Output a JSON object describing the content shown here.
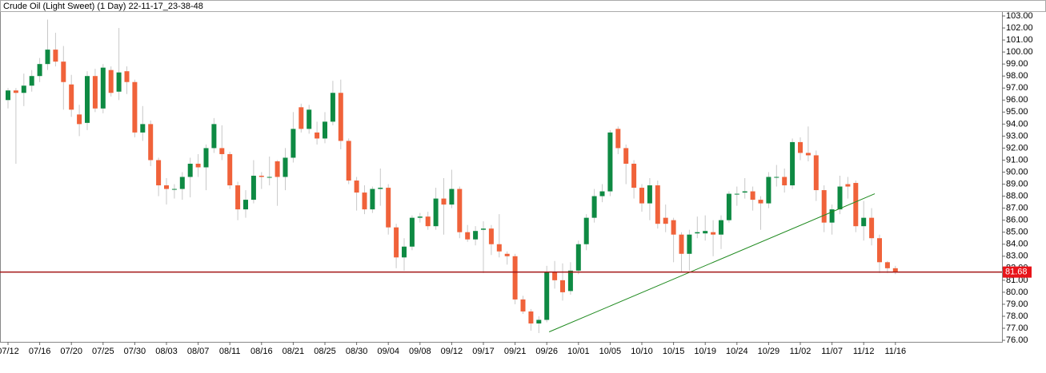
{
  "chart_data": {
    "type": "candlestick",
    "title": "Crude Oil (Light Sweet) (1 Day) 22-11-17_23-38-48",
    "categories": [
      "07/12",
      null,
      null,
      null,
      "07/16",
      null,
      null,
      null,
      "07/20",
      null,
      null,
      null,
      "07/25",
      null,
      null,
      null,
      "07/30",
      null,
      null,
      null,
      "08/03",
      null,
      null,
      null,
      "08/07",
      null,
      null,
      null,
      "08/11",
      null,
      null,
      null,
      "08/16",
      null,
      null,
      null,
      "08/21",
      null,
      null,
      null,
      "08/25",
      null,
      null,
      null,
      "08/30",
      null,
      null,
      null,
      "09/04",
      null,
      null,
      null,
      "09/08",
      null,
      null,
      null,
      "09/12",
      null,
      null,
      null,
      "09/17",
      null,
      null,
      null,
      "09/21",
      null,
      null,
      null,
      "09/26",
      null,
      null,
      null,
      "10/01",
      null,
      null,
      null,
      "10/05",
      null,
      null,
      null,
      "10/10",
      null,
      null,
      null,
      "10/15",
      null,
      null,
      null,
      "10/19",
      null,
      null,
      null,
      "10/24",
      null,
      null,
      null,
      "10/29",
      null,
      null,
      null,
      "11/02",
      null,
      null,
      null,
      "11/07",
      null,
      null,
      null,
      "11/12",
      null,
      null,
      null,
      "11/16"
    ],
    "open": [
      96.0,
      96.8,
      96.6,
      97.2,
      98.0,
      99.0,
      100.2,
      99.2,
      97.3,
      94.8,
      94.1,
      98.0,
      95.3,
      98.5,
      96.7,
      98.4,
      97.5,
      93.3,
      94.0,
      91.0,
      88.9,
      88.6,
      88.6,
      89.6,
      90.7,
      90.4,
      92.0,
      92.0,
      91.5,
      88.9,
      86.9,
      87.7,
      89.7,
      89.6,
      90.9,
      89.6,
      91.2,
      95.4,
      93.6,
      93.3,
      92.8,
      94.2,
      96.6,
      92.6,
      89.3,
      88.3,
      86.9,
      88.6,
      88.7,
      85.4,
      82.9,
      83.8,
      86.2,
      86.3,
      85.5,
      87.8,
      87.3,
      88.6,
      85.0,
      84.4,
      85.2,
      85.3,
      84.0,
      83.2,
      83.0,
      79.4,
      78.4,
      77.4,
      77.7,
      81.7,
      81.0,
      80.1,
      81.8,
      84.0,
      86.2,
      88.0,
      88.4,
      93.6,
      92.0,
      90.7,
      88.7,
      87.4,
      88.9,
      86.2,
      86.0,
      84.8,
      83.2,
      84.9,
      84.9,
      85.0,
      84.8,
      86.0,
      88.2,
      88.3,
      88.4,
      87.7,
      87.4,
      89.6,
      89.6,
      88.9,
      92.5,
      91.6,
      91.4,
      88.5,
      85.8,
      86.9,
      89.0,
      89.1,
      85.5,
      86.2,
      84.5,
      82.5,
      82.0
    ],
    "high": [
      97.0,
      97.0,
      98.2,
      98.5,
      99.5,
      102.7,
      101.6,
      100.5,
      98.1,
      95.6,
      98.4,
      98.6,
      99.0,
      98.8,
      102.0,
      98.8,
      97.7,
      95.5,
      94.3,
      91.2,
      89.5,
      89.0,
      90.0,
      91.2,
      91.5,
      92.3,
      94.5,
      93.9,
      91.7,
      89.2,
      88.5,
      91.0,
      90.0,
      91.3,
      91.0,
      92.0,
      95.0,
      95.7,
      95.6,
      94.2,
      95.0,
      97.6,
      97.7,
      92.8,
      89.6,
      88.9,
      88.8,
      90.3,
      89.0,
      85.7,
      84.5,
      86.4,
      86.6,
      86.7,
      88.7,
      89.5,
      90.2,
      88.8,
      85.6,
      85.5,
      85.9,
      85.6,
      86.5,
      83.4,
      83.2,
      79.7,
      78.6,
      78.0,
      82.2,
      82.6,
      82.4,
      82.5,
      84.3,
      86.5,
      88.6,
      89.0,
      93.5,
      93.8,
      92.3,
      91.0,
      89.0,
      89.5,
      89.3,
      87.3,
      86.2,
      85.0,
      85.2,
      86.3,
      86.4,
      86.0,
      86.4,
      88.4,
      88.8,
      89.5,
      88.8,
      88.0,
      90.0,
      90.6,
      90.3,
      92.8,
      92.9,
      93.8,
      91.8,
      88.9,
      87.3,
      89.7,
      89.6,
      89.3,
      87.6,
      87.0,
      84.8,
      82.6,
      82.2
    ],
    "low": [
      95.3,
      90.7,
      95.5,
      96.7,
      97.5,
      98.5,
      98.8,
      95.2,
      94.6,
      93.0,
      93.5,
      95.0,
      94.9,
      96.3,
      96.0,
      96.5,
      92.9,
      92.6,
      90.5,
      88.0,
      87.3,
      87.8,
      87.7,
      87.9,
      89.6,
      88.5,
      91.6,
      91.0,
      88.6,
      86.0,
      86.2,
      87.4,
      88.6,
      88.9,
      87.2,
      88.5,
      90.8,
      93.3,
      93.2,
      92.3,
      92.4,
      93.9,
      91.9,
      89.0,
      86.8,
      86.5,
      86.6,
      87.2,
      84.8,
      82.0,
      81.8,
      83.5,
      85.8,
      85.2,
      85.2,
      84.8,
      87.0,
      84.5,
      84.2,
      83.9,
      81.6,
      83.1,
      82.9,
      82.3,
      79.0,
      78.2,
      76.8,
      76.6,
      77.5,
      80.3,
      79.3,
      79.8,
      81.5,
      83.5,
      85.8,
      87.5,
      88.0,
      91.5,
      89.0,
      87.8,
      86.7,
      86.0,
      85.3,
      85.0,
      82.5,
      81.7,
      81.8,
      84.5,
      84.3,
      83.0,
      83.6,
      85.8,
      87.2,
      87.8,
      86.8,
      85.2,
      87.0,
      88.8,
      88.3,
      88.6,
      91.0,
      90.9,
      87.6,
      85.0,
      84.8,
      86.5,
      87.8,
      85.0,
      84.3,
      83.9,
      81.6,
      81.6,
      81.5
    ],
    "close": [
      96.8,
      96.6,
      97.2,
      98.0,
      99.0,
      100.2,
      99.2,
      97.5,
      95.2,
      94.0,
      98.0,
      95.3,
      98.7,
      96.6,
      98.3,
      97.5,
      93.3,
      94.0,
      91.0,
      88.9,
      88.6,
      88.6,
      89.6,
      90.7,
      90.4,
      92.0,
      94.0,
      91.5,
      88.9,
      86.9,
      87.7,
      89.7,
      89.6,
      89.6,
      89.6,
      91.2,
      93.6,
      93.6,
      95.2,
      92.8,
      94.2,
      96.6,
      92.6,
      89.3,
      88.3,
      86.9,
      88.6,
      88.7,
      85.4,
      82.9,
      83.8,
      86.2,
      86.3,
      85.5,
      87.8,
      87.3,
      88.6,
      85.0,
      84.4,
      85.1,
      85.3,
      84.0,
      83.4,
      83.0,
      79.4,
      78.4,
      77.4,
      77.7,
      81.7,
      81.0,
      80.0,
      81.8,
      84.0,
      86.2,
      88.0,
      88.4,
      93.3,
      92.0,
      90.7,
      88.7,
      87.4,
      88.9,
      85.7,
      85.7,
      84.8,
      83.2,
      84.8,
      85.0,
      85.1,
      84.8,
      86.0,
      88.2,
      88.2,
      88.4,
      87.7,
      87.4,
      89.6,
      89.6,
      88.9,
      92.5,
      91.6,
      91.4,
      88.5,
      85.8,
      86.9,
      88.8,
      88.8,
      85.5,
      86.2,
      84.5,
      82.5,
      82.0,
      81.68
    ],
    "up_color": "#0e8a43",
    "down_color": "#f0623a",
    "ylim": [
      75.87,
      103.4
    ],
    "yticks": [
      {
        "value": 76,
        "label": "76.00"
      },
      {
        "value": 77,
        "label": "77.00"
      },
      {
        "value": 78,
        "label": "78.00"
      },
      {
        "value": 79,
        "label": "79.00"
      },
      {
        "value": 80,
        "label": "80.00"
      },
      {
        "value": 81,
        "label": "81.00"
      },
      {
        "value": 82,
        "label": "82.00"
      },
      {
        "value": 83,
        "label": "83.00"
      },
      {
        "value": 84,
        "label": "84.00"
      },
      {
        "value": 85,
        "label": "85.00"
      },
      {
        "value": 86,
        "label": "86.00"
      },
      {
        "value": 87,
        "label": "87.00"
      },
      {
        "value": 88,
        "label": "88.00"
      },
      {
        "value": 89,
        "label": "89.00"
      },
      {
        "value": 90,
        "label": "90.00"
      },
      {
        "value": 91,
        "label": "91.00"
      },
      {
        "value": 92,
        "label": "92.00"
      },
      {
        "value": 93,
        "label": "93.00"
      },
      {
        "value": 94,
        "label": "94.00"
      },
      {
        "value": 95,
        "label": "95.00"
      },
      {
        "value": 96,
        "label": "96.00"
      },
      {
        "value": 97,
        "label": "97.00"
      },
      {
        "value": 98,
        "label": "98.00"
      },
      {
        "value": 99,
        "label": "99.00"
      },
      {
        "value": 100,
        "label": "100.00"
      },
      {
        "value": 101,
        "label": "101.00"
      },
      {
        "value": 102,
        "label": "102.00"
      },
      {
        "value": 103,
        "label": "103.00"
      }
    ],
    "hline": {
      "value": 81.68,
      "label": "81.68",
      "color": "#a31515",
      "label_color": "#e8141a"
    },
    "trendline": {
      "color": "#1f8a1f",
      "x": [
        68.3,
        109.4
      ],
      "y": [
        76.7,
        88.2
      ]
    }
  }
}
